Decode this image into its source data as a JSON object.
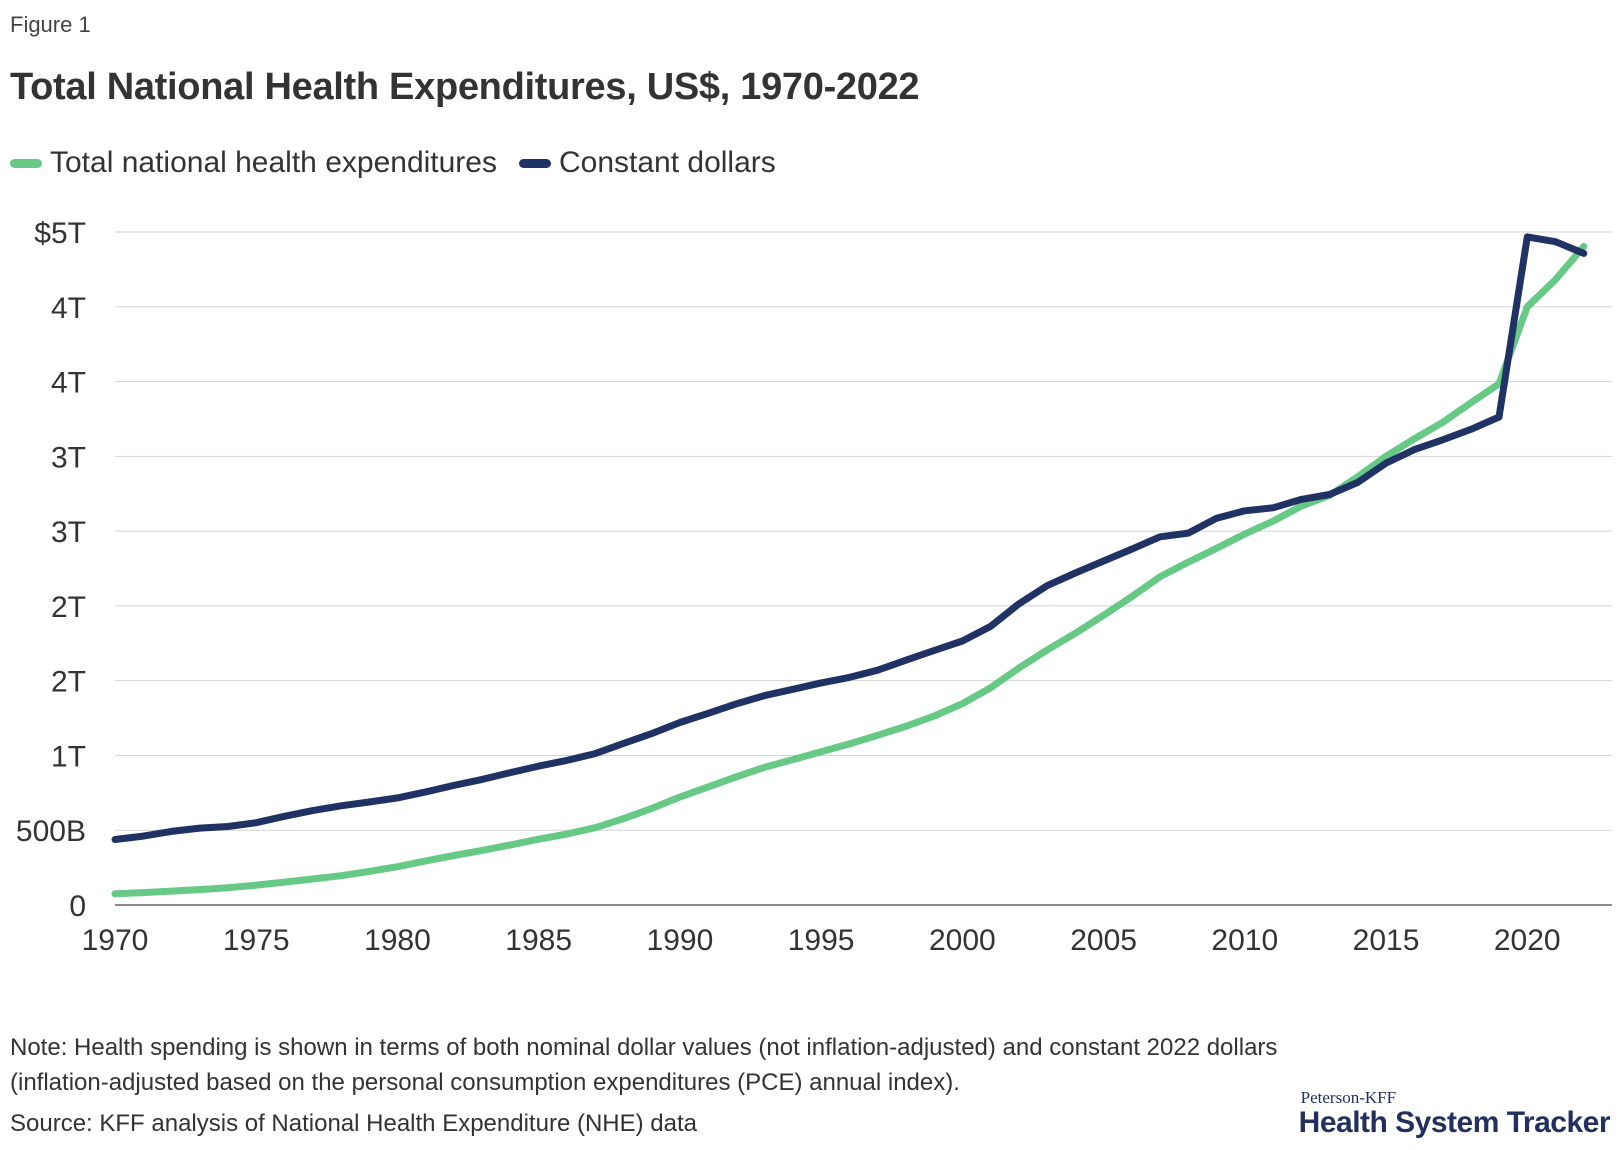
{
  "figure_label": "Figure 1",
  "title": "Total National Health Expenditures, US$, 1970-2022",
  "legend": [
    {
      "label": "Total national health expenditures",
      "color": "#66c985"
    },
    {
      "label": "Constant dollars",
      "color": "#1f3263"
    }
  ],
  "note": "Note: Health spending is shown in terms of both nominal dollar values (not inflation-adjusted) and constant 2022 dollars (inflation-adjusted based on the personal consumption expenditures (PCE) annual index).",
  "source": "Source: KFF analysis of National Health Expenditure (NHE) data",
  "brand": {
    "top": "Peterson-KFF",
    "main": "Health System Tracker"
  },
  "chart_data": {
    "type": "line",
    "title": "Total National Health Expenditures, US$, 1970-2022",
    "xlabel": "",
    "ylabel": "",
    "x": [
      1970,
      1971,
      1972,
      1973,
      1974,
      1975,
      1976,
      1977,
      1978,
      1979,
      1980,
      1981,
      1982,
      1983,
      1984,
      1985,
      1986,
      1987,
      1988,
      1989,
      1990,
      1991,
      1992,
      1993,
      1994,
      1995,
      1996,
      1997,
      1998,
      1999,
      2000,
      2001,
      2002,
      2003,
      2004,
      2005,
      2006,
      2007,
      2008,
      2009,
      2010,
      2011,
      2012,
      2013,
      2014,
      2015,
      2016,
      2017,
      2018,
      2019,
      2020,
      2021,
      2022
    ],
    "xlim": [
      1970,
      2023
    ],
    "ylim": [
      0,
      4500
    ],
    "x_ticks": [
      "1970",
      "1975",
      "1980",
      "1985",
      "1990",
      "1995",
      "2000",
      "2005",
      "2010",
      "2015",
      "2020"
    ],
    "x_tick_values": [
      1970,
      1975,
      1980,
      1985,
      1990,
      1995,
      2000,
      2005,
      2010,
      2015,
      2020
    ],
    "y_ticks": [
      "0",
      "500B",
      "1T",
      "2T",
      "2T",
      "3T",
      "3T",
      "4T",
      "4T",
      "$5T"
    ],
    "y_tick_values": [
      0,
      500,
      1000,
      1500,
      2000,
      2500,
      3000,
      3500,
      4000,
      4500
    ],
    "units": "billions of US$",
    "grid": true,
    "legend_position": "top-left",
    "series": [
      {
        "name": "Total national health expenditures",
        "color": "#66c985",
        "values": [
          75,
          83,
          93,
          103,
          116,
          133,
          153,
          174,
          196,
          225,
          256,
          295,
          331,
          365,
          402,
          440,
          475,
          517,
          577,
          646,
          722,
          790,
          857,
          921,
          972,
          1025,
          1077,
          1135,
          1195,
          1264,
          1346,
          1452,
          1584,
          1705,
          1817,
          1937,
          2062,
          2195,
          2293,
          2385,
          2481,
          2567,
          2667,
          2738,
          2864,
          3000,
          3117,
          3226,
          3357,
          3485,
          4000,
          4182,
          4404
        ]
      },
      {
        "name": "Constant dollars",
        "color": "#1f3263",
        "values": [
          438,
          461,
          492,
          514,
          525,
          550,
          593,
          631,
          663,
          689,
          716,
          756,
          800,
          840,
          885,
          929,
          967,
          1012,
          1080,
          1146,
          1220,
          1282,
          1345,
          1400,
          1442,
          1485,
          1522,
          1570,
          1637,
          1702,
          1765,
          1863,
          2013,
          2135,
          2220,
          2300,
          2380,
          2462,
          2487,
          2586,
          2636,
          2656,
          2712,
          2745,
          2826,
          2955,
          3045,
          3110,
          3180,
          3263,
          4467,
          4435,
          4357
        ]
      }
    ]
  }
}
